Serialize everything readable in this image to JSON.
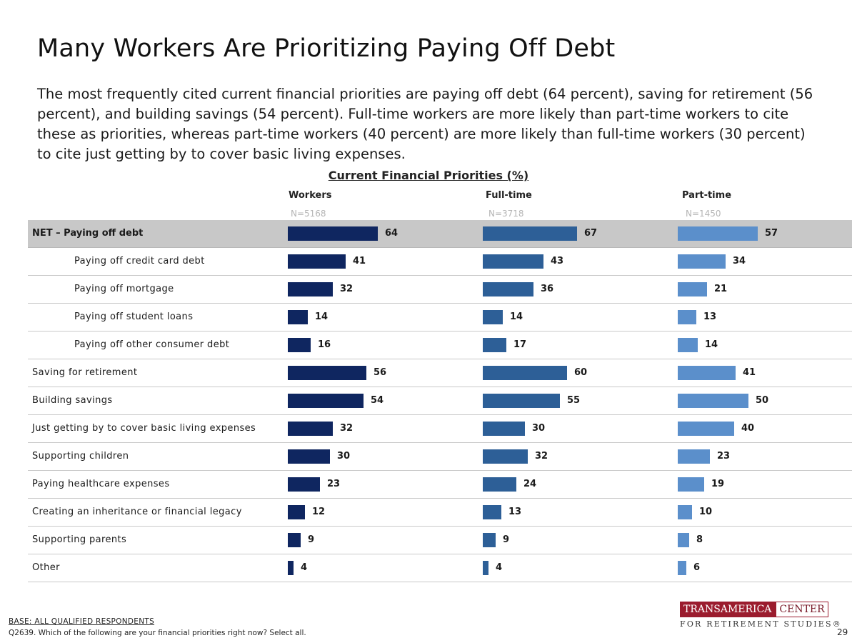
{
  "page": {
    "title": "Many Workers Are Prioritizing Paying Off Debt",
    "subtitle": "The most frequently cited current financial priorities are paying off debt (64 percent), saving for retirement (56 percent), and building savings (54 percent). Full-time workers are more likely than part-time workers to cite these as priorities, whereas part-time workers (40 percent) are more likely than full-time workers (30 percent) to cite just getting by to cover basic living expenses.",
    "base_note": "BASE:  ALL QUALIFIED RESPONDENTS",
    "question_note": "Q2639. Which of the following are your financial priorities right now? Select all.",
    "page_number": "29"
  },
  "logo": {
    "part1": "TRANSAMERICA",
    "part2": "CENTER",
    "tagline": "FOR RETIREMENT STUDIES®"
  },
  "colors": {
    "workers": "#0f2660",
    "fulltime": "#2d5f97",
    "parttime": "#5b8fcb",
    "highlight_row": "#c8c8c8"
  },
  "chart_data": {
    "type": "bar",
    "orientation": "horizontal",
    "title": "Current Financial Priorities (%)",
    "xlim": [
      0,
      100
    ],
    "categories": [
      "NET – Paying off debt",
      "Paying off credit card debt",
      "Paying off mortgage",
      "Paying off student loans",
      "Paying off other consumer debt",
      "Saving for retirement",
      "Building savings",
      "Just getting by to cover basic living expenses",
      "Supporting children",
      "Paying healthcare expenses",
      "Creating an inheritance or financial legacy",
      "Supporting parents",
      "Other"
    ],
    "indented": [
      false,
      true,
      true,
      true,
      true,
      false,
      false,
      false,
      false,
      false,
      false,
      false,
      false
    ],
    "highlighted": [
      true,
      false,
      false,
      false,
      false,
      false,
      false,
      false,
      false,
      false,
      false,
      false,
      false
    ],
    "series": [
      {
        "name": "Workers",
        "n": "N=5168",
        "values": [
          64,
          41,
          32,
          14,
          16,
          56,
          54,
          32,
          30,
          23,
          12,
          9,
          4
        ]
      },
      {
        "name": "Full-time",
        "n": "N=3718",
        "values": [
          67,
          43,
          36,
          14,
          17,
          60,
          55,
          30,
          32,
          24,
          13,
          9,
          4
        ]
      },
      {
        "name": "Part-time",
        "n": "N=1450",
        "values": [
          57,
          34,
          21,
          13,
          14,
          41,
          50,
          40,
          23,
          19,
          10,
          8,
          6
        ]
      }
    ]
  }
}
